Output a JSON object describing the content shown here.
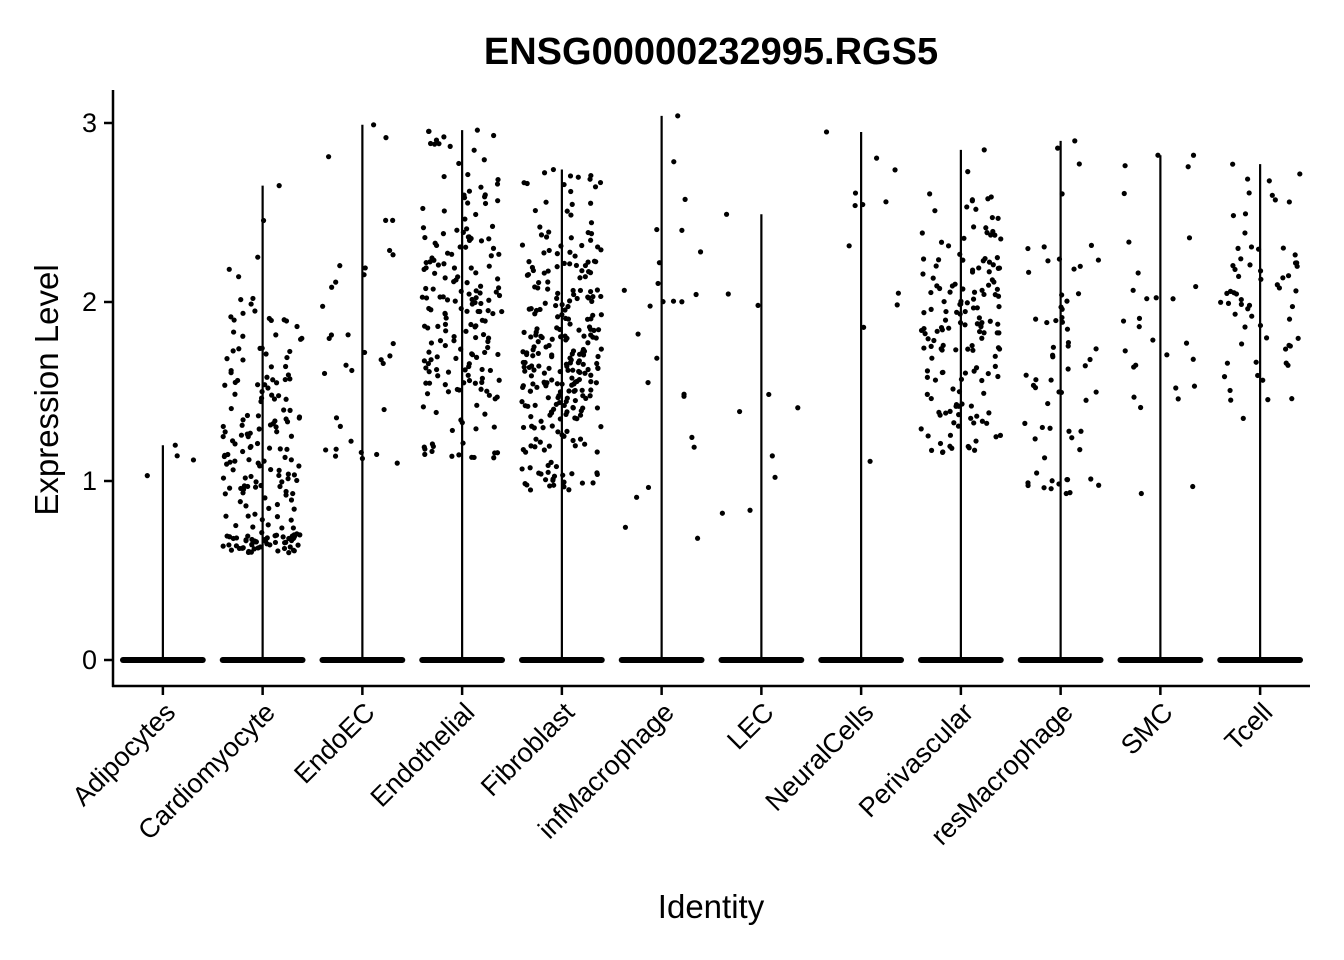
{
  "chart_data": {
    "type": "scatter",
    "subtype": "violin-jitter",
    "title": "ENSG00000232995.RGS5",
    "xlabel": "Identity",
    "ylabel": "Expression Level",
    "ylim": [
      -0.15,
      3.2
    ],
    "yticks": [
      "0",
      "1",
      "2",
      "3"
    ],
    "categories": [
      "Adipocytes",
      "Cardiomyocyte",
      "EndoEC",
      "Endothelial",
      "Fibroblast",
      "infMacrophage",
      "LEC",
      "NeuralCells",
      "Perivascular",
      "resMacrophage",
      "SMC",
      "Tcell"
    ],
    "max_values": [
      1.2,
      2.65,
      2.99,
      2.96,
      2.74,
      3.04,
      2.49,
      2.95,
      2.85,
      2.9,
      2.82,
      2.77
    ],
    "nonzero_groups": [
      {
        "category": "Adipocytes",
        "approx_count": 4,
        "min": 1.03,
        "max": 1.2,
        "center": 1.1
      },
      {
        "category": "Cardiomyocyte",
        "approx_count": 200,
        "min": 0.6,
        "max": 2.65,
        "center": 1.15
      },
      {
        "category": "EndoEC",
        "approx_count": 35,
        "min": 1.1,
        "max": 2.99,
        "center": 1.75
      },
      {
        "category": "Endothelial",
        "approx_count": 190,
        "min": 1.13,
        "max": 2.96,
        "center": 1.95
      },
      {
        "category": "Fibroblast",
        "approx_count": 280,
        "min": 0.95,
        "max": 2.74,
        "center": 1.7
      },
      {
        "category": "infMacrophage",
        "approx_count": 25,
        "min": 0.68,
        "max": 3.04,
        "center": 1.9
      },
      {
        "category": "LEC",
        "approx_count": 10,
        "min": 0.82,
        "max": 2.49,
        "center": 1.2
      },
      {
        "category": "NeuralCells",
        "approx_count": 12,
        "min": 1.11,
        "max": 2.95,
        "center": 2.3
      },
      {
        "category": "Perivascular",
        "approx_count": 160,
        "min": 1.16,
        "max": 2.85,
        "center": 1.85
      },
      {
        "category": "resMacrophage",
        "approx_count": 65,
        "min": 0.93,
        "max": 2.9,
        "center": 1.7
      },
      {
        "category": "SMC",
        "approx_count": 30,
        "min": 0.93,
        "max": 2.82,
        "center": 1.85
      },
      {
        "category": "Tcell",
        "approx_count": 65,
        "min": 1.35,
        "max": 2.77,
        "center": 2.1
      }
    ],
    "zero_band": true,
    "point_color": "#000000",
    "grid": false,
    "legend": "none"
  }
}
